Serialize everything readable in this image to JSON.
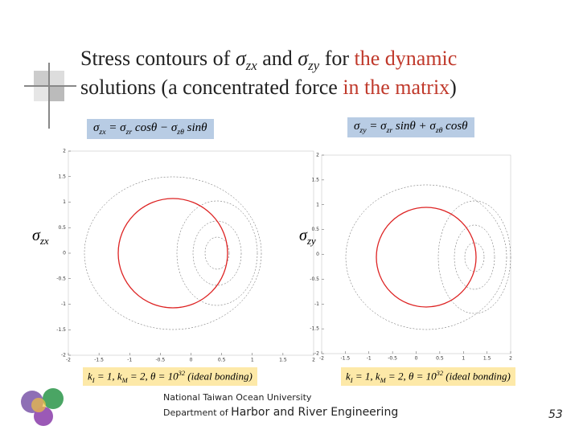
{
  "title": {
    "prefix": "Stress contours of ",
    "sym1": "σ",
    "sub1": "zx",
    "mid": " and ",
    "sym2": "σ",
    "sub2": "zy",
    "for": " for ",
    "highlight1": "the dynamic",
    "line2": "solutions (a concentrated force ",
    "highlight2": "in the matrix",
    "end": ")"
  },
  "formulas": [
    [
      {
        "t": "σ",
        "sub": "zx"
      },
      {
        "t": " = σ",
        "sub": "zr"
      },
      {
        "t": " cosθ − σ",
        "sub": "zθ"
      },
      {
        "t": " sinθ"
      }
    ],
    [
      {
        "t": "σ",
        "sub": "zy"
      },
      {
        "t": " = σ",
        "sub": "zr"
      },
      {
        "t": " sinθ + σ",
        "sub": "zθ"
      },
      {
        "t": " cosθ"
      }
    ]
  ],
  "params": [
    [
      {
        "t": "k",
        "sub": "I"
      },
      {
        "t": " = 1, k",
        "sub": "M"
      },
      {
        "t": " = 2, θ = 10",
        "sup": "32"
      },
      {
        "t": " (ideal bonding)"
      }
    ],
    [
      {
        "t": "k",
        "sub": "I"
      },
      {
        "t": " = 1, k",
        "sub": "M"
      },
      {
        "t": " = 2, θ = 10",
        "sup": "32"
      },
      {
        "t": " (ideal bonding)"
      }
    ]
  ],
  "plots": [
    {
      "ylabel": {
        "t": "σ",
        "sub": "zx"
      },
      "xlim": [
        -2,
        2
      ],
      "ylim": [
        -2,
        2
      ],
      "xticks": [
        -2,
        -1.5,
        -1,
        -0.5,
        0,
        0.5,
        1,
        1.5,
        2
      ],
      "yticks": [
        -2,
        -1.5,
        -1,
        -0.5,
        0,
        0.5,
        1,
        1.5,
        2
      ]
    },
    {
      "ylabel": {
        "t": "σ",
        "sub": "zy"
      },
      "xlim": [
        -2,
        2
      ],
      "ylim": [
        -2,
        2
      ],
      "xticks": [
        -2,
        -1.5,
        -1,
        -0.5,
        0,
        0.5,
        1,
        1.5,
        2
      ],
      "yticks": [
        -2,
        -1.5,
        -1,
        -0.5,
        0,
        0.5,
        1,
        1.5,
        2
      ]
    }
  ],
  "footer": {
    "university": "National Taiwan Ocean University",
    "dept_prefix": "Department of ",
    "dept": "Harbor and River Engineering",
    "page": "53"
  }
}
